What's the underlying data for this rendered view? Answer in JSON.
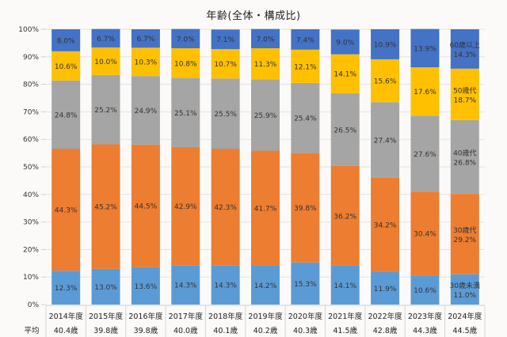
{
  "chart_data": {
    "type": "bar",
    "stacked": true,
    "title": "年齢(全体・構成比)",
    "xlabel": "",
    "ylabel": "",
    "ylim": [
      0,
      100
    ],
    "yticks": [
      "0%",
      "10%",
      "20%",
      "30%",
      "40%",
      "50%",
      "60%",
      "70%",
      "80%",
      "90%",
      "100%"
    ],
    "grid": true,
    "categories": [
      "2014年度",
      "2015年度",
      "2016年度",
      "2017年度",
      "2018年度",
      "2019年度",
      "2020年度",
      "2021年度",
      "2022年度",
      "2023年度",
      "2024年度"
    ],
    "average_row_label": "平均",
    "averages": [
      "40.4歳",
      "39.8歳",
      "39.8歳",
      "40.0歳",
      "40.1歳",
      "40.2歳",
      "40.3歳",
      "41.5歳",
      "42.8歳",
      "44.3歳",
      "44.5歳"
    ],
    "series": [
      {
        "name": "30歳未満",
        "color": "#5b9bd5",
        "values": [
          12.3,
          13.0,
          13.6,
          14.3,
          14.3,
          14.2,
          15.3,
          14.1,
          11.9,
          10.6,
          11.0
        ]
      },
      {
        "name": "30歳代",
        "color": "#ed7d31",
        "values": [
          44.3,
          45.2,
          44.5,
          42.9,
          42.3,
          41.7,
          39.8,
          36.2,
          34.2,
          30.4,
          29.2
        ]
      },
      {
        "name": "40歳代",
        "color": "#a5a5a5",
        "values": [
          24.8,
          25.2,
          24.9,
          25.1,
          25.5,
          25.9,
          25.4,
          26.5,
          27.4,
          27.6,
          26.8
        ]
      },
      {
        "name": "50歳代",
        "color": "#ffc000",
        "values": [
          10.6,
          10.0,
          10.3,
          10.8,
          10.7,
          11.3,
          12.1,
          14.1,
          15.6,
          17.6,
          18.7
        ]
      },
      {
        "name": "60歳以上",
        "color": "#4472c4",
        "values": [
          8.0,
          6.7,
          6.7,
          7.0,
          7.1,
          7.0,
          7.4,
          9.0,
          10.9,
          13.9,
          14.3
        ]
      }
    ],
    "labels": [
      [
        "12.3%",
        "13.0%",
        "13.6%",
        "14.3%",
        "14.3%",
        "14.2%",
        "15.3%",
        "14.1%",
        "11.9%",
        "10.6%",
        "11.0%"
      ],
      [
        "44.3%",
        "45.2%",
        "44.5%",
        "42.9%",
        "42.3%",
        "41.7%",
        "39.8%",
        "36.2%",
        "34.2%",
        "30.4%",
        "29.2%"
      ],
      [
        "24.8%",
        "25.2%",
        "24.9%",
        "25.1%",
        "25.5%",
        "25.9%",
        "25.4%",
        "26.5%",
        "27.4%",
        "27.6%",
        "26.8%"
      ],
      [
        "10.6%",
        "10.0%",
        "10.3%",
        "10.8%",
        "10.7%",
        "11.3%",
        "12.1%",
        "14.1%",
        "15.6%",
        "17.6%",
        "18.7%"
      ],
      [
        "8.0%",
        "6.7%",
        "6.7%",
        "7.0%",
        "7.1%",
        "7.0%",
        "7.4%",
        "9.0%",
        "10.9%",
        "13.9%",
        "14.3%"
      ]
    ],
    "legend": "inline-last-bar"
  }
}
